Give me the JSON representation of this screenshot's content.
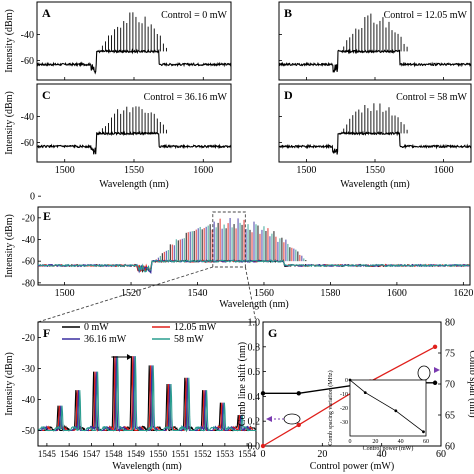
{
  "chart_data": [
    {
      "id": "A",
      "type": "line",
      "panel_label": "A",
      "annotation": "Control = 0 mW",
      "xlabel": "",
      "ylabel": "Intensity (dBm)",
      "xlim": [
        1480,
        1620
      ],
      "ylim": [
        -75,
        -15
      ],
      "yticks": [
        -60,
        -40
      ],
      "series": [
        {
          "name": "",
          "baseline_dbm": -63,
          "plateau_dbm": -53,
          "plateau_range_nm": [
            1522,
            1568
          ],
          "comb_peak_dbm": -25,
          "comb_range_nm": [
            1525,
            1575
          ]
        }
      ]
    },
    {
      "id": "B",
      "type": "line",
      "panel_label": "B",
      "annotation": "Control = 12.05 mW",
      "xlabel": "",
      "ylabel": "",
      "xlim": [
        1480,
        1620
      ],
      "ylim": [
        -75,
        -15
      ],
      "series": [
        {
          "name": "",
          "baseline_dbm": -63,
          "plateau_dbm": -53,
          "plateau_range_nm": [
            1522,
            1568
          ],
          "comb_peak_dbm": -26,
          "comb_range_nm": [
            1525,
            1575
          ]
        }
      ]
    },
    {
      "id": "C",
      "type": "line",
      "panel_label": "C",
      "annotation": "Control = 36.16 mW",
      "xlabel": "Wavelength (nm)",
      "ylabel": "Intensity (dBm)",
      "xlim": [
        1480,
        1620
      ],
      "ylim": [
        -75,
        -15
      ],
      "xticks": [
        1500,
        1550,
        1600
      ],
      "yticks": [
        -60,
        -40
      ],
      "series": [
        {
          "name": "",
          "baseline_dbm": -63,
          "plateau_dbm": -53,
          "plateau_range_nm": [
            1522,
            1568
          ],
          "comb_peak_dbm": -31,
          "comb_range_nm": [
            1525,
            1575
          ]
        }
      ]
    },
    {
      "id": "D",
      "type": "line",
      "panel_label": "D",
      "annotation": "Control = 58 mW",
      "xlabel": "Wavelength (nm)",
      "ylabel": "",
      "xlim": [
        1480,
        1620
      ],
      "ylim": [
        -75,
        -15
      ],
      "xticks": [
        1500,
        1550,
        1600
      ],
      "series": [
        {
          "name": "",
          "baseline_dbm": -63,
          "plateau_dbm": -53,
          "plateau_range_nm": [
            1522,
            1568
          ],
          "comb_peak_dbm": -30,
          "comb_range_nm": [
            1525,
            1575
          ]
        }
      ]
    },
    {
      "id": "E",
      "type": "line",
      "panel_label": "E",
      "xlabel": "Wavelength (nm)",
      "ylabel": "Intensity (dBm)",
      "xlim": [
        1492,
        1622
      ],
      "ylim": [
        -82,
        -10
      ],
      "xticks": [
        1500,
        1520,
        1540,
        1560,
        1580,
        1600,
        1620
      ],
      "yticks": [
        -80,
        -60,
        -40,
        -20,
        0
      ],
      "series": [
        {
          "name": "0 mW",
          "color": "#000000"
        },
        {
          "name": "12.05 mW",
          "color": "#e0201c"
        },
        {
          "name": "36.16 mW",
          "color": "#3a2fa0"
        },
        {
          "name": "58 mW",
          "color": "#2a9d8f"
        }
      ],
      "baseline_dbm": -64,
      "plateau_dbm": -60,
      "plateau_range_nm": [
        1525,
        1566
      ],
      "comb_peak_dbm": -22
    },
    {
      "id": "F",
      "type": "line",
      "panel_label": "F",
      "xlabel": "Wavelength (nm)",
      "ylabel": "Intensity (dBm)",
      "xlim": [
        1544.6,
        1554.4
      ],
      "ylim": [
        -55,
        -15
      ],
      "xticks": [
        1545,
        1546,
        1547,
        1548,
        1549,
        1550,
        1551,
        1552,
        1553,
        1554
      ],
      "yticks": [
        -50,
        -40,
        -30,
        -20
      ],
      "line_centers_nm": [
        1545.5,
        1546.3,
        1547.1,
        1548.0,
        1548.8,
        1549.6,
        1550.4,
        1551.2,
        1552.0,
        1552.8,
        1553.6
      ],
      "line_peaks_dbm": [
        -42,
        -37,
        -31,
        -26,
        -26,
        -29,
        -35,
        -33,
        -37,
        -41,
        -45
      ],
      "series": [
        {
          "name": "0 mW",
          "color": "#000000",
          "shift_nm": 0.0
        },
        {
          "name": "12.05 mW",
          "color": "#e0201c",
          "shift_nm": 0.06
        },
        {
          "name": "36.16 mW",
          "color": "#3a2fa0",
          "shift_nm": 0.12
        },
        {
          "name": "58 mW",
          "color": "#2a9d8f",
          "shift_nm": 0.18
        }
      ]
    },
    {
      "id": "G",
      "type": "line",
      "panel_label": "G",
      "xlabel": "Control power (mW)",
      "ylabel": "Comb line shift (nm)",
      "ylabel_right": "Comb span (nm)",
      "xlim": [
        0,
        60
      ],
      "ylim": [
        0,
        1.0
      ],
      "ylim_right": [
        60,
        80
      ],
      "xticks": [
        0,
        20,
        40,
        60
      ],
      "yticks": [
        0,
        0.2,
        0.4,
        0.6,
        0.8,
        1.0
      ],
      "yticks_right": [
        60,
        65,
        70,
        75,
        80
      ],
      "series": [
        {
          "name": "Comb line shift",
          "color": "#e0201c",
          "axis": "left",
          "x": [
            0,
            12.05,
            36.16,
            58
          ],
          "y": [
            0.0,
            0.17,
            0.52,
            0.8
          ]
        },
        {
          "name": "Comb span",
          "color": "#000000",
          "axis": "right",
          "x": [
            0,
            12.05,
            36.16,
            58
          ],
          "y": [
            68.5,
            68.5,
            70.2,
            70.2
          ]
        }
      ],
      "inset": {
        "xlabel": "Control power (mW)",
        "ylabel": "Comb spacing variation (MHz)",
        "xlim": [
          0,
          60
        ],
        "ylim": [
          -40,
          0
        ],
        "xticks": [
          0,
          20,
          40,
          60
        ],
        "yticks": [
          -30,
          -20,
          -10,
          0
        ],
        "series": [
          {
            "name": "",
            "color": "#000000",
            "x": [
              0,
              12.05,
              36.16,
              58
            ],
            "y": [
              0,
              -9,
              -22,
              -37
            ]
          }
        ]
      }
    }
  ]
}
